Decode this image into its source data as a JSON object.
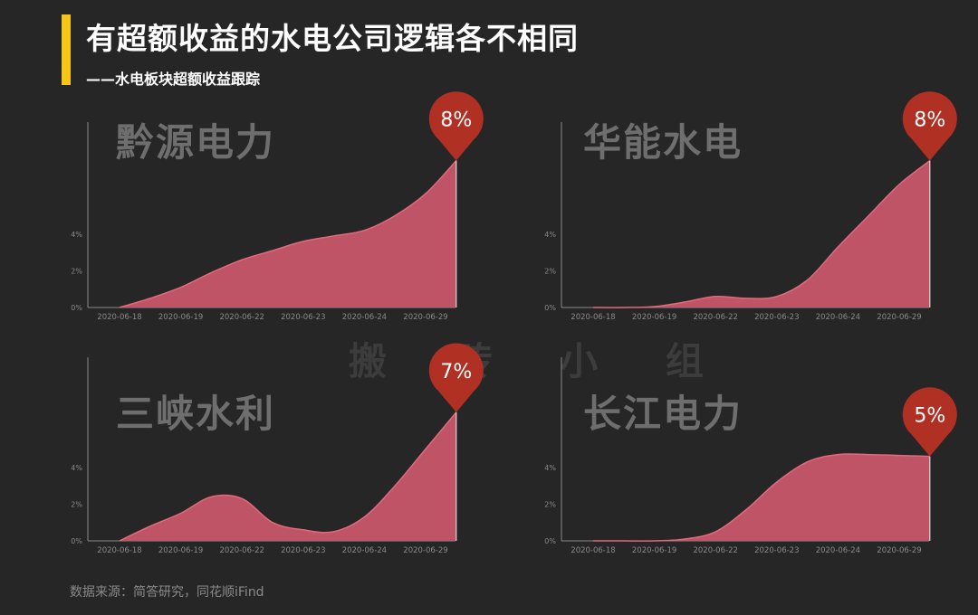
{
  "header": {
    "title": "有超额收益的水电公司逻辑各不相同",
    "subtitle": "——水电板块超额收益跟踪"
  },
  "watermark": "搬 砖 小 组",
  "source": "数据来源：简答研究，同花顺iFind",
  "colors": {
    "accent": "#f5c518",
    "area_fill": "#c8566a",
    "area_stroke": "#e06a7e",
    "marker": "#b03024",
    "axis": "#8a8a8a",
    "chart_title": "#6e6e6e",
    "background": "#262626"
  },
  "chart_data": [
    {
      "type": "area",
      "title": "黔源电力",
      "badge": "8%",
      "categories": [
        "2020-06-18",
        "2020-06-19",
        "2020-06-22",
        "2020-06-23",
        "2020-06-24",
        "2020-06-29"
      ],
      "x": [
        0,
        0.5,
        1,
        1.5,
        2,
        2.5,
        3,
        3.5,
        4,
        4.5,
        5,
        5.5
      ],
      "values": [
        0,
        0.5,
        1.1,
        1.9,
        2.6,
        3.1,
        3.6,
        3.9,
        4.2,
        5.0,
        6.2,
        8.0
      ],
      "yticks": [
        "0%",
        "2%",
        "4%"
      ],
      "ylim": [
        0,
        8
      ]
    },
    {
      "type": "area",
      "title": "华能水电",
      "badge": "8%",
      "categories": [
        "2020-06-18",
        "2020-06-19",
        "2020-06-22",
        "2020-06-23",
        "2020-06-24",
        "2020-06-29"
      ],
      "x": [
        0,
        0.5,
        1,
        1.5,
        2,
        2.5,
        3,
        3.5,
        4,
        4.5,
        5,
        5.5
      ],
      "values": [
        0,
        0,
        0.05,
        0.3,
        0.6,
        0.5,
        0.6,
        1.5,
        3.3,
        5.0,
        6.7,
        8.0
      ],
      "yticks": [
        "0%",
        "2%",
        "4%"
      ],
      "ylim": [
        0,
        8
      ]
    },
    {
      "type": "area",
      "title": "三峡水利",
      "badge": "7%",
      "categories": [
        "2020-06-18",
        "2020-06-19",
        "2020-06-22",
        "2020-06-23",
        "2020-06-24",
        "2020-06-29"
      ],
      "x": [
        0,
        0.5,
        1,
        1.5,
        2,
        2.5,
        3,
        3.5,
        4,
        4.5,
        5,
        5.5
      ],
      "values": [
        0,
        0.8,
        1.5,
        2.4,
        2.3,
        1.0,
        0.6,
        0.5,
        1.3,
        3.0,
        5.0,
        7.0
      ],
      "yticks": [
        "0%",
        "2%",
        "4%"
      ],
      "ylim": [
        0,
        7
      ]
    },
    {
      "type": "area",
      "title": "长江电力",
      "badge": "5%",
      "categories": [
        "2020-06-18",
        "2020-06-19",
        "2020-06-22",
        "2020-06-23",
        "2020-06-24",
        "2020-06-29"
      ],
      "x": [
        0,
        0.5,
        1,
        1.5,
        2,
        2.5,
        3,
        3.5,
        4,
        4.5,
        5,
        5.5
      ],
      "values": [
        0,
        0,
        0,
        0.1,
        0.5,
        1.7,
        3.2,
        4.3,
        4.7,
        4.7,
        4.65,
        4.6
      ],
      "yticks": [
        "0%",
        "2%",
        "4%"
      ],
      "ylim": [
        0,
        5
      ]
    }
  ]
}
